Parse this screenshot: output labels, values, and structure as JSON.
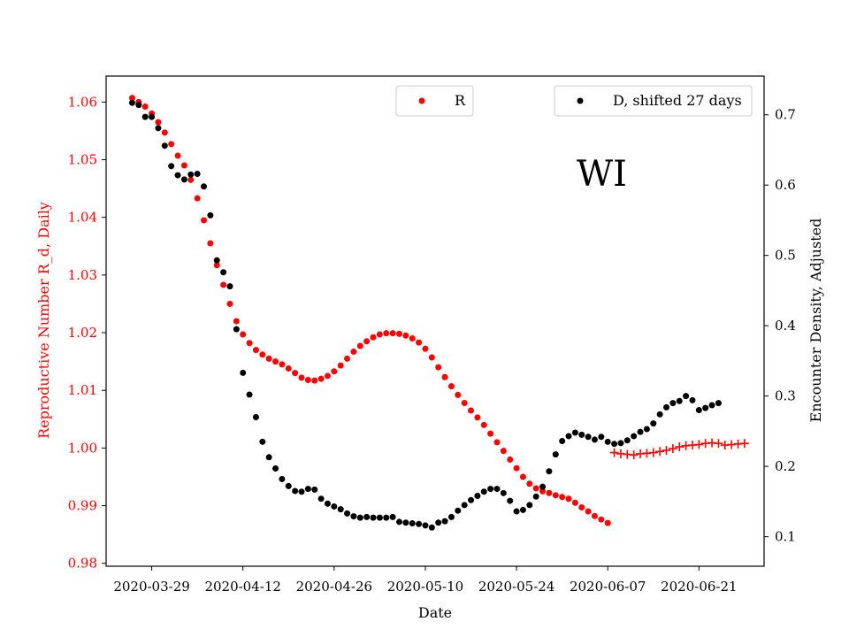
{
  "chart_data": {
    "type": "scatter",
    "xlabel": "Date",
    "y_left_label": "Reproductive Number R_d, Daily",
    "y_right_label": "Encounter Density, Adjusted",
    "annotation": "WI",
    "x_range": [
      "2020-03-22",
      "2020-07-01"
    ],
    "x_ticks": [
      "2020-03-29",
      "2020-04-12",
      "2020-04-26",
      "2020-05-10",
      "2020-05-24",
      "2020-06-07",
      "2020-06-21"
    ],
    "y_left_range": [
      0.9795,
      1.0645
    ],
    "y_left_ticks": [
      "0.98",
      "0.99",
      "1.00",
      "1.01",
      "1.02",
      "1.03",
      "1.04",
      "1.05",
      "1.06"
    ],
    "y_right_range": [
      0.058,
      0.755
    ],
    "y_right_ticks": [
      "0.1",
      "0.2",
      "0.3",
      "0.4",
      "0.5",
      "0.6",
      "0.7"
    ],
    "colors": {
      "R": "#ff0000",
      "D": "#000000",
      "left_axis": "#ff0000",
      "right_axis": "#000000"
    },
    "legend": [
      {
        "label": "R",
        "color": "#ff0000",
        "placement": "upper-center"
      },
      {
        "label": "D, shifted 27 days",
        "color": "#000000",
        "placement": "upper-right"
      }
    ],
    "series": [
      {
        "name": "R",
        "axis": "left",
        "marker": "dot",
        "color": "#ff0000",
        "start_date": "2020-03-26",
        "values": [
          1.0607,
          1.06,
          1.0592,
          1.058,
          1.0565,
          1.0547,
          1.0527,
          1.0507,
          1.049,
          1.0465,
          1.0433,
          1.0395,
          1.0355,
          1.0317,
          1.0283,
          1.025,
          1.022,
          1.0197,
          1.0182,
          1.017,
          1.0162,
          1.0155,
          1.015,
          1.0145,
          1.0138,
          1.013,
          1.0122,
          1.0118,
          1.0117,
          1.012,
          1.0125,
          1.0133,
          1.0143,
          1.0155,
          1.0167,
          1.0177,
          1.0185,
          1.0192,
          1.0197,
          1.0199,
          1.0199,
          1.0198,
          1.0195,
          1.019,
          1.0183,
          1.0172,
          1.0157,
          1.014,
          1.0123,
          1.0107,
          1.0092,
          1.0078,
          1.0065,
          1.0053,
          1.004,
          1.0025,
          1.001,
          0.9995,
          0.998,
          0.9965,
          0.995,
          0.9938,
          0.993,
          0.9925,
          0.9922,
          0.9918,
          0.9915,
          0.9912,
          0.9905,
          0.9897,
          0.989,
          0.9882,
          0.9876,
          0.987
        ]
      },
      {
        "name": "R",
        "axis": "left",
        "marker": "plus",
        "color": "#ff0000",
        "start_date": "2020-06-08",
        "values": [
          0.9992,
          0.999,
          0.9989,
          0.9988,
          0.999,
          0.9991,
          0.9992,
          0.9994,
          0.9996,
          0.9999,
          1.0002,
          1.0004,
          1.0005,
          1.0006,
          1.0008,
          1.0009,
          1.0008,
          1.0005,
          1.0006,
          1.0007,
          1.0008
        ]
      },
      {
        "name": "D, shifted 27 days",
        "axis": "right",
        "marker": "dot",
        "color": "#000000",
        "start_date": "2020-03-26",
        "values": [
          0.717,
          0.714,
          0.697,
          0.697,
          0.681,
          0.656,
          0.627,
          0.614,
          0.608,
          0.615,
          0.616,
          0.598,
          0.557,
          0.493,
          0.476,
          0.456,
          0.395,
          0.333,
          0.302,
          0.27,
          0.235,
          0.213,
          0.197,
          0.182,
          0.172,
          0.165,
          0.164,
          0.168,
          0.167,
          0.154,
          0.147,
          0.143,
          0.139,
          0.133,
          0.129,
          0.127,
          0.128,
          0.127,
          0.127,
          0.127,
          0.128,
          0.121,
          0.12,
          0.119,
          0.118,
          0.116,
          0.113,
          0.12,
          0.122,
          0.128,
          0.137,
          0.145,
          0.152,
          0.158,
          0.164,
          0.168,
          0.168,
          0.162,
          0.151,
          0.136,
          0.138,
          0.145,
          0.157,
          0.171,
          0.193,
          0.217,
          0.236,
          0.243,
          0.248,
          0.245,
          0.242,
          0.238,
          0.242,
          0.235,
          0.232,
          0.233,
          0.237,
          0.243,
          0.249,
          0.253,
          0.261,
          0.274,
          0.284,
          0.29,
          0.293,
          0.3,
          0.294,
          0.28,
          0.283,
          0.287,
          0.29
        ]
      }
    ]
  }
}
